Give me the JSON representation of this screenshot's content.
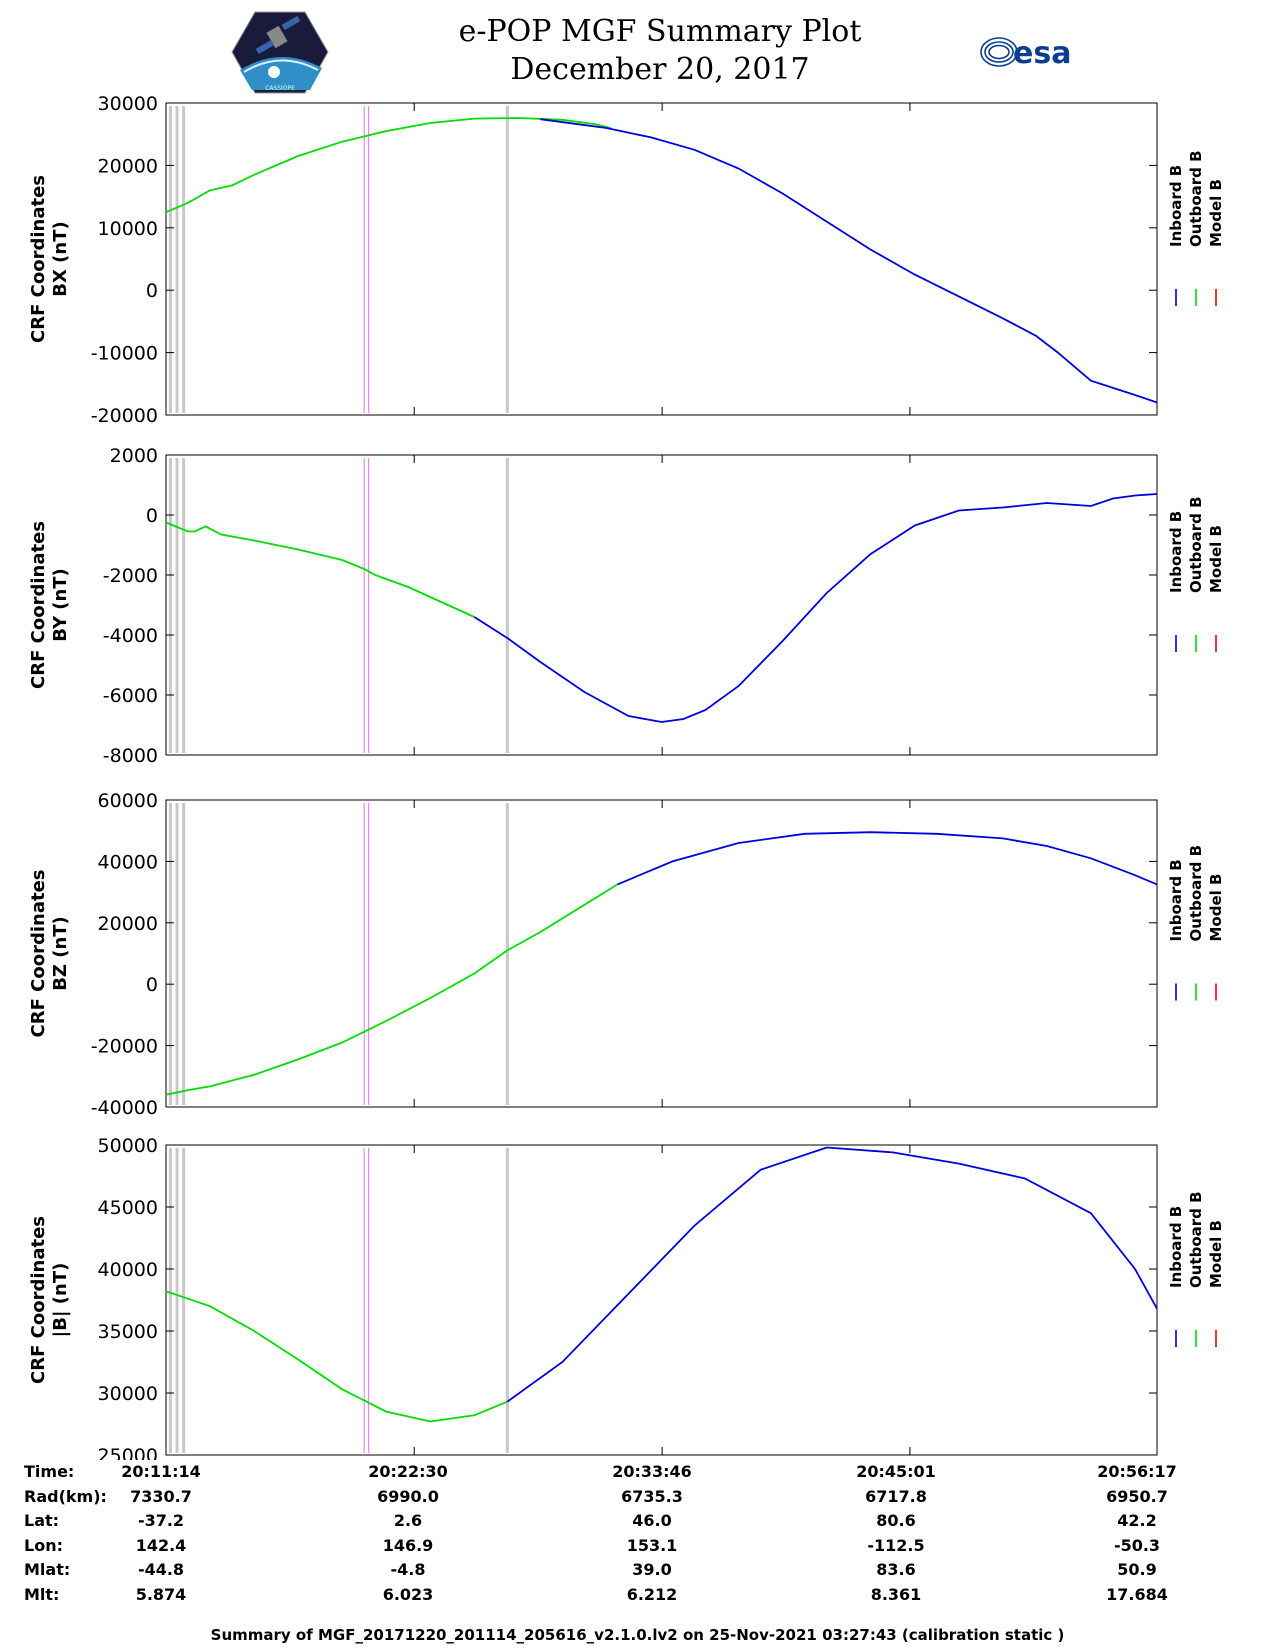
{
  "title": {
    "line1": "e-POP MGF Summary Plot",
    "line2": "December 20, 2017"
  },
  "logos": {
    "mission_logo_text": "CASSIOPE",
    "agency_logo_text": "esa",
    "agency_color": "#0b3d91"
  },
  "colors": {
    "inboard": "#0000dd",
    "outboard": "#00dd00",
    "model": "#ee0000",
    "marker_gray": "#c8c8c8",
    "marker_pink": "#ee88ee"
  },
  "legend": [
    "Inboard B",
    "Outboard B",
    "Model B"
  ],
  "chart_data": [
    {
      "type": "line",
      "ylabel": [
        "CRF Coordinates",
        "BX (nT)"
      ],
      "ylim": [
        -20000,
        30000
      ],
      "yticks": [
        "30000",
        "20000",
        "10000",
        "0",
        "-10000",
        "-20000"
      ],
      "xlim": [
        0,
        45
      ],
      "grid": false,
      "legend_position": "right",
      "series": [
        {
          "name": "Outboard B",
          "color_key": "outboard",
          "x": [
            0,
            1,
            2,
            3,
            4,
            6,
            8,
            10,
            12,
            14,
            16,
            18,
            19.5,
            20.2
          ],
          "y": [
            12500,
            14000,
            16000,
            16800,
            18500,
            21500,
            23800,
            25500,
            26800,
            27500,
            27600,
            27300,
            26600,
            26000
          ]
        },
        {
          "name": "Inboard B",
          "color_key": "inboard",
          "x": [
            17,
            20,
            22,
            24,
            26,
            28,
            30,
            32,
            34,
            36,
            38,
            39.5,
            40.5,
            42,
            44,
            45
          ],
          "y": [
            27400,
            26000,
            24500,
            22500,
            19500,
            15500,
            11000,
            6500,
            2500,
            -1000,
            -4500,
            -7300,
            -10000,
            -14500,
            -16800,
            -18000
          ]
        }
      ],
      "markers": [
        {
          "x": 0.2,
          "kind": "gray"
        },
        {
          "x": 0.5,
          "kind": "gray"
        },
        {
          "x": 0.8,
          "kind": "gray"
        },
        {
          "x": 9.0,
          "kind": "pink"
        },
        {
          "x": 9.2,
          "kind": "pink"
        },
        {
          "x": 15.5,
          "kind": "gray"
        }
      ]
    },
    {
      "type": "line",
      "ylabel": [
        "CRF Coordinates",
        "BY (nT)"
      ],
      "ylim": [
        -8000,
        2000
      ],
      "yticks": [
        "2000",
        "0",
        "-2000",
        "-4000",
        "-6000",
        "-8000"
      ],
      "xlim": [
        0,
        45
      ],
      "grid": false,
      "legend_position": "right",
      "series": [
        {
          "name": "Outboard B",
          "color_key": "outboard",
          "x": [
            0,
            1,
            1.3,
            1.8,
            2.5,
            4,
            6,
            8,
            9,
            9.5,
            11,
            12.5,
            14
          ],
          "y": [
            -250,
            -550,
            -550,
            -380,
            -650,
            -850,
            -1150,
            -1500,
            -1800,
            -2000,
            -2400,
            -2900,
            -3400
          ]
        },
        {
          "name": "Inboard B",
          "color_key": "inboard",
          "x": [
            14,
            15.5,
            17,
            19,
            21,
            22.5,
            23.5,
            24.5,
            26,
            28,
            30,
            32,
            34,
            36,
            38,
            40,
            42,
            43,
            44,
            45
          ],
          "y": [
            -3400,
            -4100,
            -4900,
            -5900,
            -6700,
            -6900,
            -6800,
            -6500,
            -5700,
            -4200,
            -2600,
            -1300,
            -350,
            150,
            250,
            400,
            300,
            550,
            650,
            700
          ]
        }
      ],
      "markers": [
        {
          "x": 0.2,
          "kind": "gray"
        },
        {
          "x": 0.5,
          "kind": "gray"
        },
        {
          "x": 0.8,
          "kind": "gray"
        },
        {
          "x": 9.0,
          "kind": "pink"
        },
        {
          "x": 9.2,
          "kind": "pink"
        },
        {
          "x": 15.5,
          "kind": "gray"
        }
      ]
    },
    {
      "type": "line",
      "ylabel": [
        "CRF Coordinates",
        "BZ (nT)"
      ],
      "ylim": [
        -40000,
        60000
      ],
      "yticks": [
        "60000",
        "40000",
        "20000",
        "0",
        "-20000",
        "-40000"
      ],
      "xlim": [
        0,
        45
      ],
      "grid": false,
      "legend_position": "right",
      "series": [
        {
          "name": "Outboard B",
          "color_key": "outboard",
          "x": [
            0,
            1,
            2,
            4,
            6,
            8,
            10,
            12,
            14,
            15.5,
            17,
            20.5
          ],
          "y": [
            -36000,
            -34500,
            -33300,
            -29500,
            -24500,
            -19000,
            -12000,
            -4500,
            3500,
            11000,
            17000,
            32500
          ]
        },
        {
          "name": "Inboard B",
          "color_key": "inboard",
          "x": [
            20.5,
            23,
            26,
            29,
            32,
            35,
            38,
            40,
            42,
            44,
            45
          ],
          "y": [
            32500,
            40000,
            46000,
            49000,
            49500,
            49000,
            47500,
            45000,
            41000,
            35500,
            32500
          ]
        }
      ],
      "markers": [
        {
          "x": 0.2,
          "kind": "gray"
        },
        {
          "x": 0.5,
          "kind": "gray"
        },
        {
          "x": 0.8,
          "kind": "gray"
        },
        {
          "x": 9.0,
          "kind": "pink"
        },
        {
          "x": 9.2,
          "kind": "pink"
        },
        {
          "x": 15.5,
          "kind": "gray"
        }
      ]
    },
    {
      "type": "line",
      "ylabel": [
        "CRF Coordinates",
        "|B| (nT)"
      ],
      "ylim": [
        25000,
        50000
      ],
      "yticks": [
        "50000",
        "45000",
        "40000",
        "35000",
        "30000",
        "25000"
      ],
      "xlim": [
        0,
        45
      ],
      "grid": false,
      "legend_position": "right",
      "series": [
        {
          "name": "Outboard B",
          "color_key": "outboard",
          "x": [
            0,
            2,
            4,
            6,
            8,
            10,
            12,
            14,
            15.5
          ],
          "y": [
            38200,
            37000,
            35000,
            32700,
            30300,
            28500,
            27700,
            28200,
            29300
          ]
        },
        {
          "name": "Inboard B",
          "color_key": "inboard",
          "x": [
            15.5,
            18,
            21,
            24,
            27,
            30,
            33,
            36,
            39,
            42,
            44,
            45
          ],
          "y": [
            29300,
            32500,
            38000,
            43500,
            48000,
            49800,
            49400,
            48500,
            47300,
            44500,
            40000,
            36800
          ]
        }
      ],
      "markers": [
        {
          "x": 0.2,
          "kind": "gray"
        },
        {
          "x": 0.5,
          "kind": "gray"
        },
        {
          "x": 0.8,
          "kind": "gray"
        },
        {
          "x": 9.0,
          "kind": "pink"
        },
        {
          "x": 9.2,
          "kind": "pink"
        },
        {
          "x": 15.5,
          "kind": "gray"
        }
      ]
    }
  ],
  "ephemeris": {
    "x_values": [
      0,
      11.27,
      22.53,
      33.78,
      45
    ],
    "rows": [
      {
        "label": "Time:",
        "values": [
          "20:11:14",
          "20:22:30",
          "20:33:46",
          "20:45:01",
          "20:56:17"
        ]
      },
      {
        "label": "Rad(km):",
        "values": [
          "7330.7",
          "6990.0",
          "6735.3",
          "6717.8",
          "6950.7"
        ]
      },
      {
        "label": "Lat:",
        "values": [
          "-37.2",
          "2.6",
          "46.0",
          "80.6",
          "42.2"
        ]
      },
      {
        "label": "Lon:",
        "values": [
          "142.4",
          "146.9",
          "153.1",
          "-112.5",
          "-50.3"
        ]
      },
      {
        "label": "Mlat:",
        "values": [
          "-44.8",
          "-4.8",
          "39.0",
          "83.6",
          "50.9"
        ]
      },
      {
        "label": "Mlt:",
        "values": [
          "5.874",
          "6.023",
          "6.212",
          "8.361",
          "17.684"
        ]
      }
    ]
  },
  "footer": "Summary of MGF_20171220_201114_205616_v2.1.0.lv2 on 25-Nov-2021 03:27:43 (calibration static )"
}
